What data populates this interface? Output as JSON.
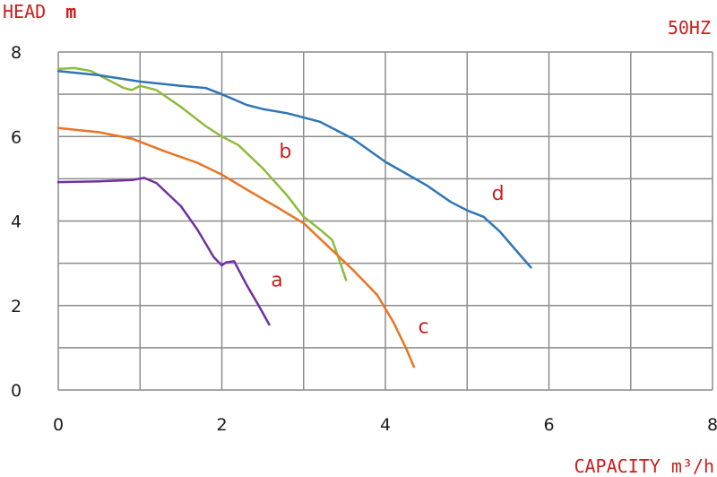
{
  "chart_data": {
    "type": "line",
    "ylabel": "HEAD",
    "ylabel_unit": "m",
    "xlabel": "CAPACITY m³/h",
    "frequency_label": "50HZ",
    "xlim": [
      0,
      8
    ],
    "ylim": [
      0,
      8
    ],
    "x_ticks": [
      0,
      2,
      4,
      6,
      8
    ],
    "y_ticks": [
      0,
      2,
      4,
      6,
      8
    ],
    "x_grid_step": 1,
    "y_grid_step": 1,
    "grid": true,
    "legend": "none",
    "series": [
      {
        "name": "a",
        "color": "#7030a0",
        "points": [
          [
            0,
            4.92
          ],
          [
            0.5,
            4.94
          ],
          [
            0.9,
            4.97
          ],
          [
            1.05,
            5.02
          ],
          [
            1.2,
            4.9
          ],
          [
            1.5,
            4.35
          ],
          [
            1.7,
            3.8
          ],
          [
            1.9,
            3.15
          ],
          [
            2.0,
            2.95
          ],
          [
            2.05,
            3.02
          ],
          [
            2.15,
            3.05
          ],
          [
            2.3,
            2.5
          ],
          [
            2.45,
            2.0
          ],
          [
            2.58,
            1.55
          ]
        ],
        "label_at": [
          2.6,
          2.45
        ]
      },
      {
        "name": "b",
        "color": "#8dbb3c",
        "points": [
          [
            0,
            7.6
          ],
          [
            0.2,
            7.62
          ],
          [
            0.4,
            7.55
          ],
          [
            0.6,
            7.35
          ],
          [
            0.8,
            7.15
          ],
          [
            0.9,
            7.1
          ],
          [
            1.0,
            7.2
          ],
          [
            1.2,
            7.1
          ],
          [
            1.5,
            6.7
          ],
          [
            1.8,
            6.25
          ],
          [
            2.0,
            6.0
          ],
          [
            2.2,
            5.8
          ],
          [
            2.5,
            5.25
          ],
          [
            2.8,
            4.6
          ],
          [
            3.0,
            4.1
          ],
          [
            3.2,
            3.8
          ],
          [
            3.35,
            3.55
          ],
          [
            3.45,
            3.0
          ],
          [
            3.52,
            2.6
          ]
        ],
        "label_at": [
          2.7,
          5.5
        ]
      },
      {
        "name": "c",
        "color": "#e97423",
        "points": [
          [
            0,
            6.2
          ],
          [
            0.5,
            6.1
          ],
          [
            0.9,
            5.95
          ],
          [
            1.3,
            5.65
          ],
          [
            1.7,
            5.38
          ],
          [
            2.0,
            5.1
          ],
          [
            2.3,
            4.75
          ],
          [
            2.7,
            4.3
          ],
          [
            3.0,
            3.95
          ],
          [
            3.3,
            3.4
          ],
          [
            3.6,
            2.85
          ],
          [
            3.9,
            2.25
          ],
          [
            4.1,
            1.6
          ],
          [
            4.25,
            1.0
          ],
          [
            4.35,
            0.55
          ]
        ],
        "label_at": [
          4.4,
          1.35
        ]
      },
      {
        "name": "d",
        "color": "#2e75b6",
        "points": [
          [
            0,
            7.55
          ],
          [
            0.5,
            7.45
          ],
          [
            1.0,
            7.3
          ],
          [
            1.5,
            7.2
          ],
          [
            1.8,
            7.15
          ],
          [
            2.0,
            7.0
          ],
          [
            2.3,
            6.75
          ],
          [
            2.5,
            6.65
          ],
          [
            2.8,
            6.55
          ],
          [
            3.2,
            6.35
          ],
          [
            3.6,
            5.95
          ],
          [
            4.0,
            5.4
          ],
          [
            4.5,
            4.85
          ],
          [
            4.8,
            4.45
          ],
          [
            5.0,
            4.25
          ],
          [
            5.2,
            4.1
          ],
          [
            5.4,
            3.75
          ],
          [
            5.6,
            3.3
          ],
          [
            5.78,
            2.9
          ]
        ],
        "label_at": [
          5.3,
          4.5
        ]
      }
    ]
  }
}
